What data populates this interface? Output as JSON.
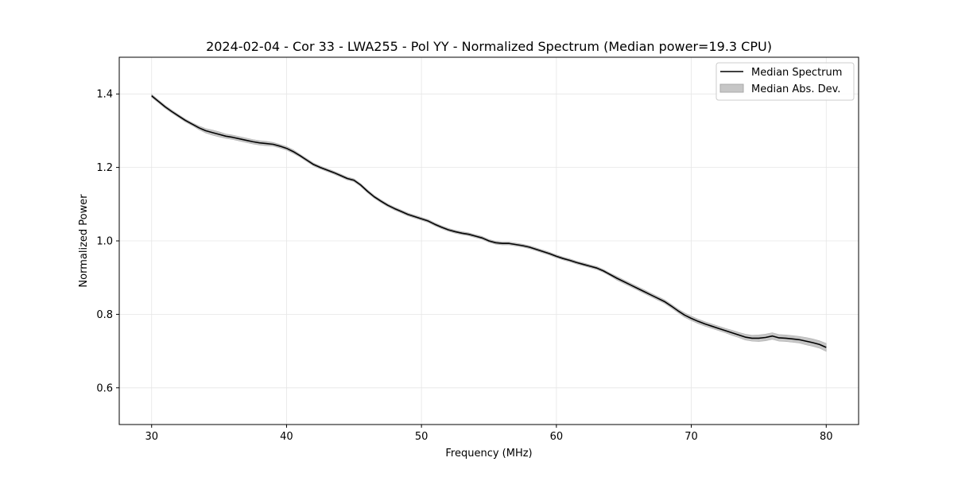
{
  "chart_data": {
    "type": "line",
    "title": "2024-02-04 - Cor 33 - LWA255 - Pol YY - Normalized Spectrum (Median power=19.3 CPU)",
    "xlabel": "Frequency (MHz)",
    "ylabel": "Normalized Power",
    "xlim": [
      27.6,
      82.4
    ],
    "ylim": [
      0.5,
      1.5
    ],
    "xticks": [
      30,
      40,
      50,
      60,
      70,
      80
    ],
    "xtick_labels": [
      "30",
      "40",
      "50",
      "60",
      "70",
      "80"
    ],
    "yticks": [
      0.6,
      0.8,
      1.0,
      1.2,
      1.4
    ],
    "ytick_labels": [
      "0.6",
      "0.8",
      "1.0",
      "1.2",
      "1.4"
    ],
    "grid": true,
    "legend": {
      "position": "top-right",
      "entries": [
        "Median Spectrum",
        "Median Abs. Dev."
      ]
    },
    "colors": {
      "line": "#000000",
      "band": "#c6c6c6",
      "grid": "#e6e6e6"
    },
    "series": [
      {
        "name": "Median Spectrum",
        "x": [
          30,
          30.5,
          31,
          31.5,
          32,
          32.5,
          33,
          33.5,
          34,
          34.5,
          35,
          35.5,
          36,
          36.5,
          37,
          37.5,
          38,
          38.5,
          39,
          39.5,
          40,
          40.5,
          41,
          41.5,
          42,
          42.5,
          43,
          43.5,
          44,
          44.5,
          45,
          45.5,
          46,
          46.5,
          47,
          47.5,
          48,
          48.5,
          49,
          49.5,
          50,
          50.5,
          51,
          51.5,
          52,
          52.5,
          53,
          53.5,
          54,
          54.5,
          55,
          55.5,
          56,
          56.5,
          57,
          57.5,
          58,
          58.5,
          59,
          59.5,
          60,
          60.5,
          61,
          61.5,
          62,
          62.5,
          63,
          63.5,
          64,
          64.5,
          65,
          65.5,
          66,
          66.5,
          67,
          67.5,
          68,
          68.5,
          69,
          69.5,
          70,
          70.5,
          71,
          71.5,
          72,
          72.5,
          73,
          73.5,
          74,
          74.5,
          75,
          75.5,
          76,
          76.5,
          77,
          77.5,
          78,
          78.5,
          79,
          79.5,
          80
        ],
        "y": [
          1.395,
          1.38,
          1.365,
          1.352,
          1.34,
          1.328,
          1.318,
          1.308,
          1.3,
          1.295,
          1.29,
          1.285,
          1.282,
          1.278,
          1.274,
          1.27,
          1.267,
          1.265,
          1.263,
          1.258,
          1.252,
          1.243,
          1.232,
          1.22,
          1.208,
          1.2,
          1.193,
          1.186,
          1.178,
          1.17,
          1.165,
          1.152,
          1.135,
          1.12,
          1.108,
          1.097,
          1.088,
          1.08,
          1.072,
          1.066,
          1.06,
          1.054,
          1.045,
          1.037,
          1.03,
          1.025,
          1.021,
          1.018,
          1.013,
          1.008,
          1.0,
          0.995,
          0.993,
          0.993,
          0.99,
          0.987,
          0.983,
          0.977,
          0.971,
          0.965,
          0.958,
          0.952,
          0.947,
          0.941,
          0.936,
          0.931,
          0.926,
          0.918,
          0.908,
          0.898,
          0.889,
          0.88,
          0.871,
          0.862,
          0.853,
          0.844,
          0.835,
          0.823,
          0.81,
          0.798,
          0.789,
          0.781,
          0.774,
          0.768,
          0.762,
          0.756,
          0.75,
          0.744,
          0.738,
          0.735,
          0.735,
          0.737,
          0.741,
          0.736,
          0.735,
          0.733,
          0.731,
          0.727,
          0.723,
          0.718,
          0.71
        ]
      },
      {
        "name": "Median Abs. Dev.",
        "type": "band",
        "mad": [
          0.004,
          0.004,
          0.004,
          0.004,
          0.004,
          0.004,
          0.004,
          0.005,
          0.006,
          0.007,
          0.007,
          0.006,
          0.006,
          0.006,
          0.006,
          0.006,
          0.006,
          0.006,
          0.005,
          0.005,
          0.005,
          0.005,
          0.004,
          0.004,
          0.004,
          0.004,
          0.004,
          0.004,
          0.004,
          0.004,
          0.004,
          0.004,
          0.004,
          0.004,
          0.004,
          0.004,
          0.004,
          0.004,
          0.004,
          0.004,
          0.004,
          0.004,
          0.004,
          0.004,
          0.004,
          0.004,
          0.004,
          0.004,
          0.004,
          0.004,
          0.004,
          0.004,
          0.004,
          0.004,
          0.004,
          0.004,
          0.004,
          0.004,
          0.004,
          0.004,
          0.004,
          0.004,
          0.004,
          0.004,
          0.004,
          0.004,
          0.004,
          0.004,
          0.004,
          0.005,
          0.005,
          0.005,
          0.005,
          0.005,
          0.005,
          0.005,
          0.005,
          0.005,
          0.005,
          0.006,
          0.006,
          0.006,
          0.006,
          0.006,
          0.006,
          0.006,
          0.007,
          0.007,
          0.008,
          0.008,
          0.009,
          0.009,
          0.009,
          0.009,
          0.009,
          0.009,
          0.009,
          0.01,
          0.01,
          0.01,
          0.011
        ]
      }
    ]
  }
}
